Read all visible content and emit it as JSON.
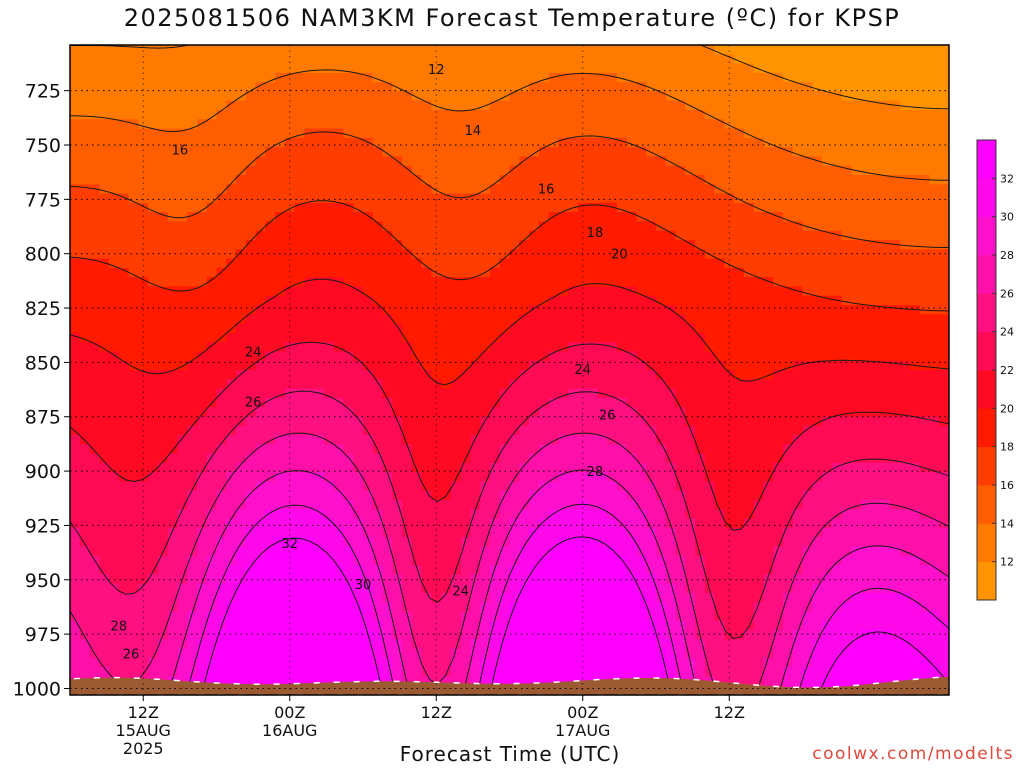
{
  "title": "2025081506 NAM3KM Forecast Temperature (ºC) for KPSP",
  "credit": "coolwx.com/modelts",
  "chart_data": {
    "type": "heatmap",
    "subtype": "filled-contour time-height",
    "title": "2025081506 NAM3KM Forecast Temperature (ºC) for KPSP",
    "xlabel": "Forecast Time (UTC)",
    "ylabel": "",
    "ylim": [
      1003,
      704
    ],
    "y_scale": "pressure (reversed)",
    "y_ticks": [
      725,
      750,
      775,
      800,
      825,
      850,
      875,
      900,
      925,
      950,
      975,
      1000
    ],
    "x_range_hours_utc": [
      "2025-08-15 06Z",
      "2025-08-18 06Z"
    ],
    "x_ticks": [
      {
        "time": "2025-08-15 12Z",
        "label": [
          "12Z",
          "15AUG",
          "2025"
        ]
      },
      {
        "time": "2025-08-16 00Z",
        "label": [
          "00Z",
          "16AUG"
        ]
      },
      {
        "time": "2025-08-16 12Z",
        "label": [
          "12Z"
        ]
      },
      {
        "time": "2025-08-17 00Z",
        "label": [
          "00Z",
          "17AUG"
        ]
      },
      {
        "time": "2025-08-17 12Z",
        "label": [
          "12Z"
        ]
      }
    ],
    "colorbar": {
      "levels": [
        10,
        12,
        14,
        16,
        18,
        20,
        22,
        24,
        26,
        28,
        30,
        32,
        34
      ],
      "labels": [
        12,
        14,
        16,
        18,
        20,
        22,
        24,
        26,
        28,
        30,
        32
      ],
      "colors": [
        "#ff9400",
        "#ff7a00",
        "#ff5e00",
        "#ff3d00",
        "#ff1a00",
        "#ff0a22",
        "#ff0a55",
        "#ff1080",
        "#ff10a8",
        "#ff10cc",
        "#ff08ea",
        "#ff00ff"
      ]
    },
    "contour_interval": 2,
    "contour_labels": [
      {
        "value": 12,
        "time": "2025-08-16 12Z",
        "p": 715
      },
      {
        "value": 14,
        "time": "2025-08-16 15Z",
        "p": 743
      },
      {
        "value": 16,
        "time": "2025-08-15 15Z",
        "p": 752
      },
      {
        "value": 16,
        "time": "2025-08-16 21Z",
        "p": 770
      },
      {
        "value": 18,
        "time": "2025-08-17 01Z",
        "p": 790
      },
      {
        "value": 20,
        "time": "2025-08-17 03Z",
        "p": 800
      },
      {
        "value": 24,
        "time": "2025-08-15 21Z",
        "p": 845
      },
      {
        "value": 24,
        "time": "2025-08-17 00Z",
        "p": 853
      },
      {
        "value": 26,
        "time": "2025-08-15 21Z",
        "p": 868
      },
      {
        "value": 26,
        "time": "2025-08-17 02Z",
        "p": 874
      },
      {
        "value": 28,
        "time": "2025-08-17 01Z",
        "p": 900
      },
      {
        "value": 28,
        "time": "2025-08-15 10Z",
        "p": 971
      },
      {
        "value": 26,
        "time": "2025-08-15 11Z",
        "p": 984
      },
      {
        "value": 32,
        "time": "2025-08-16 00Z",
        "p": 933
      },
      {
        "value": 30,
        "time": "2025-08-16 06Z",
        "p": 952
      },
      {
        "value": 24,
        "time": "2025-08-16 14Z",
        "p": 955
      }
    ],
    "surface_pressure_approx": 997,
    "grid": true,
    "legend": "colorbar right"
  }
}
